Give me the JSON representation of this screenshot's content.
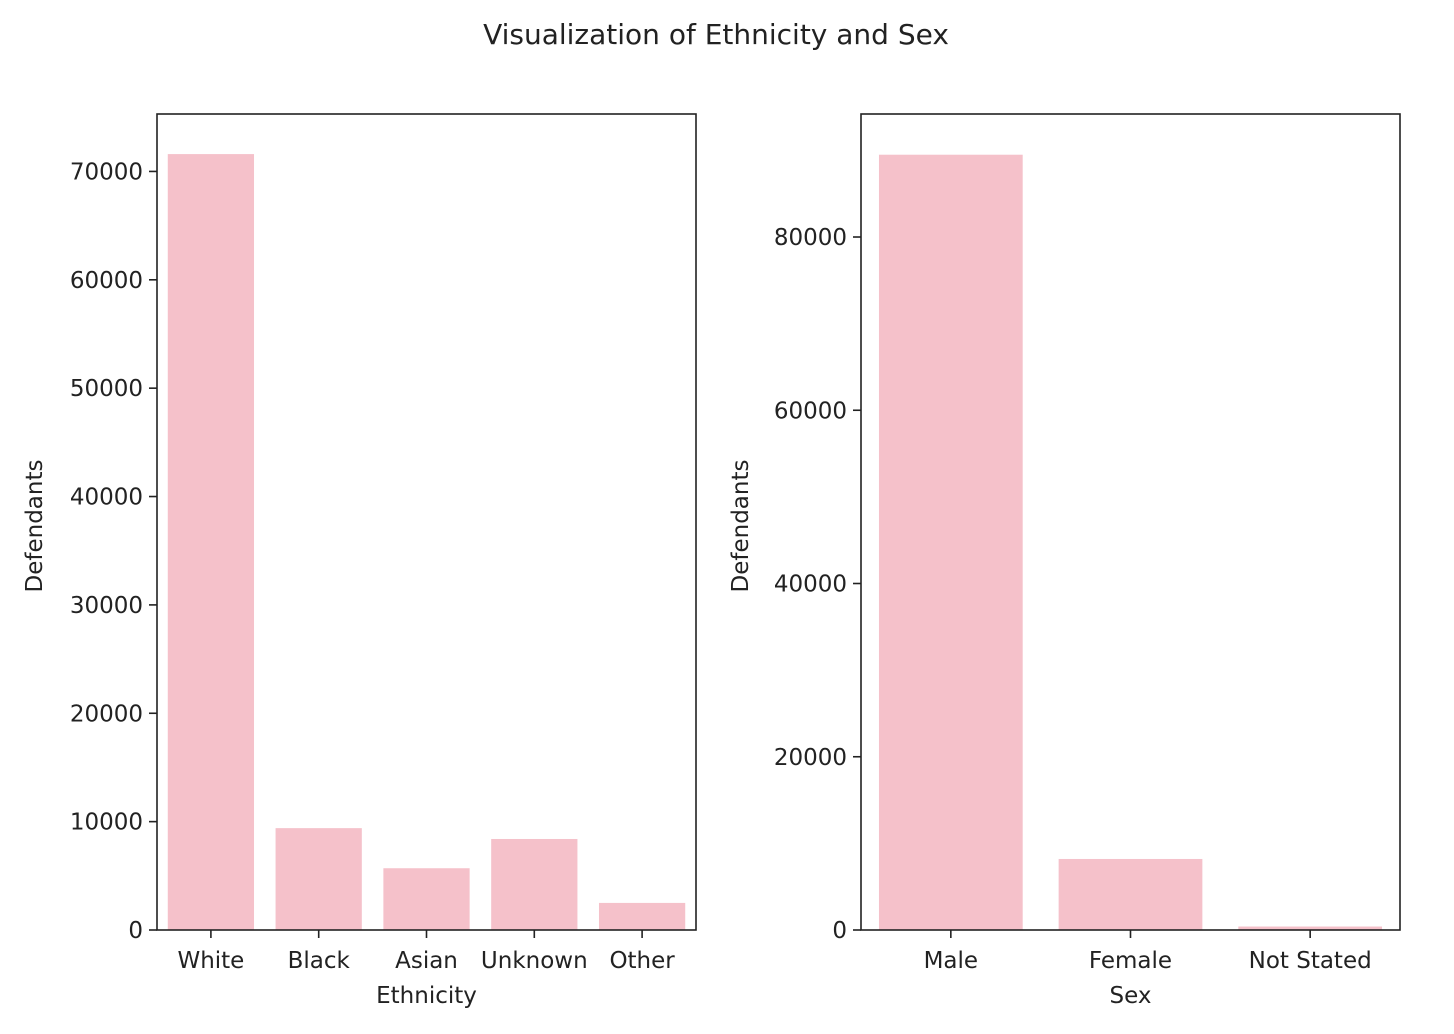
{
  "figure": {
    "title": "Visualization of Ethnicity and Sex"
  },
  "bar_color": "#f5c1ca",
  "chart_data": [
    {
      "type": "bar",
      "categories": [
        "White",
        "Black",
        "Asian",
        "Unknown",
        "Other"
      ],
      "values": [
        71600,
        9400,
        5700,
        8400,
        2500
      ],
      "xlabel": "Ethnicity",
      "ylabel": "Defendants",
      "ylim": [
        0,
        75300
      ],
      "yticks": [
        0,
        10000,
        20000,
        30000,
        40000,
        50000,
        60000,
        70000
      ],
      "grid": false
    },
    {
      "type": "bar",
      "categories": [
        "Male",
        "Female",
        "Not Stated"
      ],
      "values": [
        89500,
        8200,
        400
      ],
      "xlabel": "Sex",
      "ylabel": "Defendants",
      "ylim": [
        0,
        94200
      ],
      "yticks": [
        0,
        20000,
        40000,
        60000,
        80000
      ],
      "grid": false
    }
  ]
}
